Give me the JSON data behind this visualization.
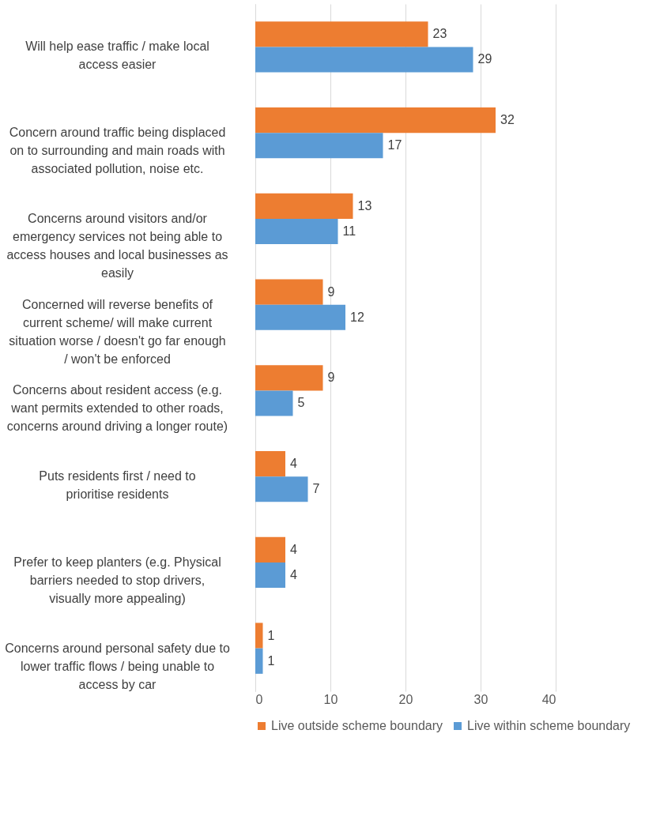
{
  "chart_data": {
    "type": "bar",
    "orientation": "horizontal",
    "categories": [
      "Will help ease traffic / make local access easier",
      "Concern around traffic being displaced on to surrounding and main roads with associated pollution, noise etc.",
      "Concerns around visitors and/or emergency services not being able to access houses and local businesses as easily",
      "Concerned will reverse benefits of current scheme/ will make current situation worse / doesn't go far enough / won't be enforced",
      "Concerns about resident access (e.g. want permits extended to other roads, concerns around driving a longer route)",
      "Puts residents first / need to prioritise residents",
      "Prefer to keep planters (e.g. Physical barriers needed to stop drivers, visually more appealing)",
      "Concerns around personal safety due to lower traffic flows / being unable to access by car"
    ],
    "series": [
      {
        "name": "Live outside scheme boundary",
        "color": "#ed7d31",
        "values": [
          23,
          32,
          13,
          9,
          9,
          4,
          4,
          1
        ]
      },
      {
        "name": "Live within scheme boundary",
        "color": "#5b9bd5",
        "values": [
          29,
          17,
          11,
          12,
          5,
          7,
          4,
          1
        ]
      }
    ],
    "xlim": [
      0,
      40
    ],
    "xticks": [
      0,
      10,
      20,
      30,
      40
    ],
    "grid": "x",
    "legend": "bottom",
    "data_labels": true
  }
}
